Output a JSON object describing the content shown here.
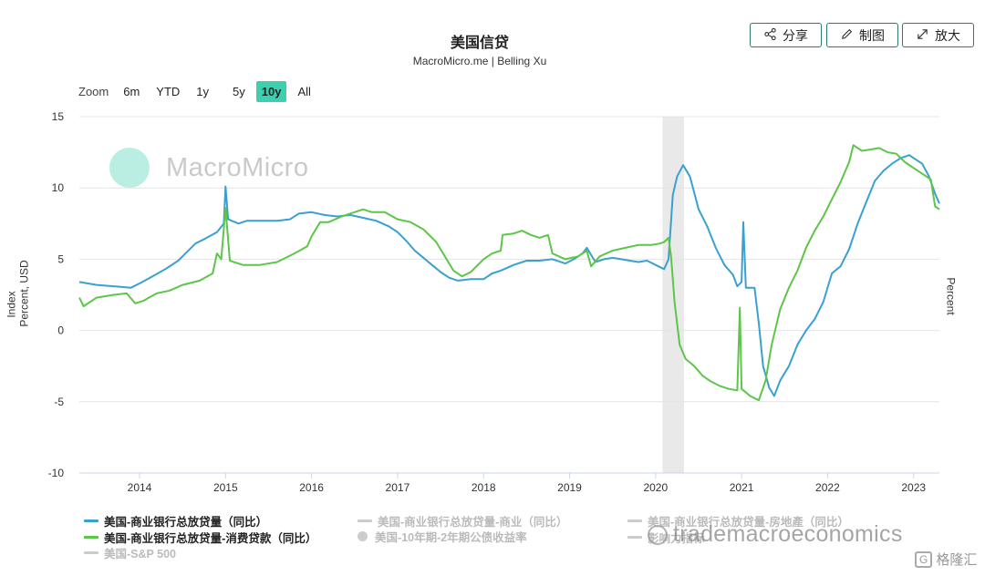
{
  "header": {
    "title": "美国信贷",
    "subtitle": "MacroMicro.me | Belling Xu"
  },
  "toolbar": {
    "share_label": "分享",
    "draw_label": "制图",
    "enlarge_label": "放大"
  },
  "zoom": {
    "label": "Zoom",
    "options": [
      "6m",
      "YTD",
      "1y",
      "5y",
      "10y",
      "All"
    ],
    "active": "10y"
  },
  "axes": {
    "left_label_outer": "Index",
    "left_label_inner": "Percent, USD",
    "right_label": "Percent"
  },
  "watermarks": {
    "brand": "MacroMicro",
    "wechat": "trademacroeconomics",
    "badge": "G",
    "badge_text": "格隆汇"
  },
  "legend": [
    {
      "label": "美国-商业银行总放贷量（同比）",
      "active": true,
      "color": "#3aa0d0"
    },
    {
      "label": "美国-商业银行总放贷量-商业（同比）",
      "active": false,
      "color": "#cccccc"
    },
    {
      "label": "美国-商业银行总放贷量-房地產（同比）",
      "active": false,
      "color": "#cccccc"
    },
    {
      "label": "美国-商业银行总放贷量-消费贷款（同比）",
      "active": true,
      "color": "#5cc648"
    },
    {
      "label": "美国-10年期-2年期公债收益率",
      "active": false,
      "color": "#cccccc"
    },
    {
      "label": "影响力指标",
      "active": false,
      "color": "#cccccc"
    },
    {
      "label": "美国-S&P 500",
      "active": false,
      "color": "#cccccc"
    }
  ],
  "chart_data": {
    "type": "line",
    "title": "美国信贷",
    "subtitle": "MacroMicro.me | Belling Xu",
    "ylabel": "Percent, USD",
    "y2label": "Percent",
    "ylim": [
      -10,
      15
    ],
    "yticks": [
      -10,
      -5,
      0,
      5,
      10,
      15
    ],
    "xlim": [
      2013.3,
      2023.3
    ],
    "xticks": [
      2014,
      2015,
      2016,
      2017,
      2018,
      2019,
      2020,
      2021,
      2022,
      2023
    ],
    "grid": true,
    "legend_position": "bottom",
    "shaded_regions": [
      [
        2020.08,
        2020.33
      ]
    ],
    "series": [
      {
        "name": "美国-商业银行总放贷量（同比）",
        "color": "#3aa0d0",
        "points": [
          [
            2013.3,
            3.4
          ],
          [
            2013.5,
            3.2
          ],
          [
            2013.7,
            3.1
          ],
          [
            2013.9,
            3.0
          ],
          [
            2014.0,
            3.3
          ],
          [
            2014.15,
            3.8
          ],
          [
            2014.3,
            4.3
          ],
          [
            2014.45,
            4.9
          ],
          [
            2014.55,
            5.5
          ],
          [
            2014.65,
            6.1
          ],
          [
            2014.75,
            6.4
          ],
          [
            2014.9,
            6.9
          ],
          [
            2014.98,
            7.5
          ],
          [
            2015.0,
            10.1
          ],
          [
            2015.03,
            7.8
          ],
          [
            2015.15,
            7.5
          ],
          [
            2015.25,
            7.7
          ],
          [
            2015.4,
            7.7
          ],
          [
            2015.6,
            7.7
          ],
          [
            2015.75,
            7.8
          ],
          [
            2015.85,
            8.2
          ],
          [
            2016.0,
            8.3
          ],
          [
            2016.15,
            8.1
          ],
          [
            2016.3,
            8.0
          ],
          [
            2016.45,
            8.1
          ],
          [
            2016.6,
            7.9
          ],
          [
            2016.75,
            7.7
          ],
          [
            2016.9,
            7.3
          ],
          [
            2017.0,
            6.9
          ],
          [
            2017.1,
            6.3
          ],
          [
            2017.2,
            5.6
          ],
          [
            2017.3,
            5.1
          ],
          [
            2017.4,
            4.6
          ],
          [
            2017.5,
            4.1
          ],
          [
            2017.6,
            3.7
          ],
          [
            2017.7,
            3.5
          ],
          [
            2017.85,
            3.6
          ],
          [
            2018.0,
            3.6
          ],
          [
            2018.1,
            4.0
          ],
          [
            2018.2,
            4.2
          ],
          [
            2018.35,
            4.6
          ],
          [
            2018.5,
            4.9
          ],
          [
            2018.65,
            4.9
          ],
          [
            2018.8,
            5.0
          ],
          [
            2018.95,
            4.7
          ],
          [
            2019.05,
            5.0
          ],
          [
            2019.15,
            5.4
          ],
          [
            2019.2,
            5.8
          ],
          [
            2019.3,
            4.8
          ],
          [
            2019.4,
            5.0
          ],
          [
            2019.5,
            5.1
          ],
          [
            2019.6,
            5.0
          ],
          [
            2019.7,
            4.9
          ],
          [
            2019.8,
            4.8
          ],
          [
            2019.9,
            4.9
          ],
          [
            2020.0,
            4.6
          ],
          [
            2020.1,
            4.3
          ],
          [
            2020.15,
            5.0
          ],
          [
            2020.2,
            9.5
          ],
          [
            2020.25,
            10.8
          ],
          [
            2020.32,
            11.6
          ],
          [
            2020.4,
            10.8
          ],
          [
            2020.5,
            8.5
          ],
          [
            2020.6,
            7.3
          ],
          [
            2020.7,
            5.8
          ],
          [
            2020.8,
            4.6
          ],
          [
            2020.9,
            3.9
          ],
          [
            2020.95,
            3.1
          ],
          [
            2021.0,
            3.4
          ],
          [
            2021.02,
            7.6
          ],
          [
            2021.05,
            3.0
          ],
          [
            2021.15,
            3.0
          ],
          [
            2021.2,
            0.5
          ],
          [
            2021.25,
            -2.5
          ],
          [
            2021.32,
            -4.0
          ],
          [
            2021.38,
            -4.6
          ],
          [
            2021.45,
            -3.5
          ],
          [
            2021.55,
            -2.5
          ],
          [
            2021.65,
            -1.0
          ],
          [
            2021.75,
            0.0
          ],
          [
            2021.85,
            0.8
          ],
          [
            2021.95,
            2.0
          ],
          [
            2022.05,
            4.0
          ],
          [
            2022.15,
            4.5
          ],
          [
            2022.25,
            5.7
          ],
          [
            2022.35,
            7.5
          ],
          [
            2022.45,
            9.0
          ],
          [
            2022.55,
            10.5
          ],
          [
            2022.65,
            11.2
          ],
          [
            2022.75,
            11.7
          ],
          [
            2022.85,
            12.1
          ],
          [
            2022.95,
            12.3
          ],
          [
            2023.0,
            12.1
          ],
          [
            2023.1,
            11.7
          ],
          [
            2023.18,
            10.8
          ],
          [
            2023.25,
            9.6
          ],
          [
            2023.3,
            8.9
          ]
        ]
      },
      {
        "name": "美国-商业银行总放贷量-消费贷款（同比）",
        "color": "#5cc648",
        "points": [
          [
            2013.3,
            2.3
          ],
          [
            2013.35,
            1.7
          ],
          [
            2013.5,
            2.3
          ],
          [
            2013.7,
            2.5
          ],
          [
            2013.85,
            2.6
          ],
          [
            2013.95,
            1.9
          ],
          [
            2014.05,
            2.1
          ],
          [
            2014.2,
            2.6
          ],
          [
            2014.35,
            2.8
          ],
          [
            2014.5,
            3.2
          ],
          [
            2014.7,
            3.5
          ],
          [
            2014.85,
            4.0
          ],
          [
            2014.9,
            5.4
          ],
          [
            2014.95,
            5.0
          ],
          [
            2015.0,
            8.6
          ],
          [
            2015.05,
            4.9
          ],
          [
            2015.2,
            4.6
          ],
          [
            2015.4,
            4.6
          ],
          [
            2015.6,
            4.8
          ],
          [
            2015.8,
            5.4
          ],
          [
            2015.95,
            5.9
          ],
          [
            2016.0,
            6.6
          ],
          [
            2016.1,
            7.6
          ],
          [
            2016.2,
            7.6
          ],
          [
            2016.35,
            8.0
          ],
          [
            2016.5,
            8.3
          ],
          [
            2016.6,
            8.5
          ],
          [
            2016.7,
            8.3
          ],
          [
            2016.85,
            8.3
          ],
          [
            2017.0,
            7.8
          ],
          [
            2017.15,
            7.6
          ],
          [
            2017.3,
            7.1
          ],
          [
            2017.45,
            6.2
          ],
          [
            2017.55,
            5.2
          ],
          [
            2017.65,
            4.2
          ],
          [
            2017.75,
            3.8
          ],
          [
            2017.85,
            4.1
          ],
          [
            2018.0,
            5.0
          ],
          [
            2018.1,
            5.4
          ],
          [
            2018.2,
            5.6
          ],
          [
            2018.22,
            6.7
          ],
          [
            2018.35,
            6.8
          ],
          [
            2018.45,
            7.0
          ],
          [
            2018.55,
            6.7
          ],
          [
            2018.65,
            6.5
          ],
          [
            2018.75,
            6.7
          ],
          [
            2018.8,
            5.4
          ],
          [
            2018.95,
            5.0
          ],
          [
            2019.1,
            5.2
          ],
          [
            2019.2,
            5.6
          ],
          [
            2019.25,
            4.5
          ],
          [
            2019.35,
            5.2
          ],
          [
            2019.5,
            5.6
          ],
          [
            2019.65,
            5.8
          ],
          [
            2019.8,
            6.0
          ],
          [
            2019.95,
            6.0
          ],
          [
            2020.05,
            6.1
          ],
          [
            2020.1,
            6.2
          ],
          [
            2020.15,
            6.5
          ],
          [
            2020.18,
            5.2
          ],
          [
            2020.22,
            2.0
          ],
          [
            2020.28,
            -1.0
          ],
          [
            2020.35,
            -2.0
          ],
          [
            2020.45,
            -2.5
          ],
          [
            2020.55,
            -3.2
          ],
          [
            2020.65,
            -3.6
          ],
          [
            2020.75,
            -3.9
          ],
          [
            2020.85,
            -4.1
          ],
          [
            2020.95,
            -4.2
          ],
          [
            2020.98,
            1.6
          ],
          [
            2021.0,
            -4.1
          ],
          [
            2021.1,
            -4.6
          ],
          [
            2021.2,
            -4.9
          ],
          [
            2021.28,
            -3.5
          ],
          [
            2021.35,
            -1.0
          ],
          [
            2021.45,
            1.5
          ],
          [
            2021.55,
            3.0
          ],
          [
            2021.65,
            4.2
          ],
          [
            2021.75,
            5.8
          ],
          [
            2021.85,
            7.0
          ],
          [
            2021.95,
            8.0
          ],
          [
            2022.05,
            9.2
          ],
          [
            2022.15,
            10.4
          ],
          [
            2022.25,
            11.8
          ],
          [
            2022.3,
            13.0
          ],
          [
            2022.4,
            12.6
          ],
          [
            2022.5,
            12.7
          ],
          [
            2022.6,
            12.8
          ],
          [
            2022.7,
            12.5
          ],
          [
            2022.8,
            12.4
          ],
          [
            2022.9,
            11.8
          ],
          [
            2023.0,
            11.4
          ],
          [
            2023.1,
            11.0
          ],
          [
            2023.2,
            10.6
          ],
          [
            2023.25,
            8.7
          ],
          [
            2023.3,
            8.5
          ]
        ]
      }
    ]
  }
}
